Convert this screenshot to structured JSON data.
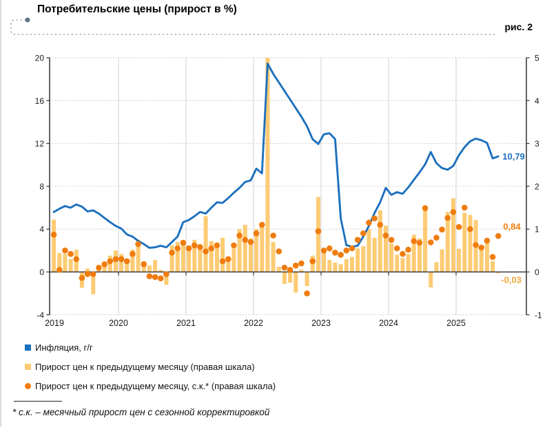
{
  "header": {
    "title": "Потребительские цены (прирост в %)",
    "figure_label": "рис. 2"
  },
  "footnote": {
    "text": "* с.к. – месячный прирост цен с сезонной корректировкой"
  },
  "colors": {
    "line_blue": "#1C70BE",
    "bar_amber": "#FCCB74",
    "dot_orange": "#F07C0D",
    "bar_label": "#F0A73E",
    "axis": "#3A3A3A",
    "grid_solid": "#D8D8D8",
    "grid_dotted": "#C0C0C0",
    "tick_text": "#1A1A1A",
    "decoration": "#9FAFBF",
    "decoration_dot": "#5D7385"
  },
  "chart_data": {
    "type": "combo",
    "frequency": "monthly",
    "start_month": "2019-01",
    "end_month": "2025-08",
    "x_years": [
      "2019",
      "2020",
      "2021",
      "2022",
      "2023",
      "2024",
      "2025"
    ],
    "left_axis": {
      "ticks": [
        20,
        16,
        12,
        8,
        4,
        0,
        -4
      ],
      "range": [
        -4,
        20
      ]
    },
    "right_axis": {
      "ticks": [
        5,
        4,
        3,
        2,
        1,
        0,
        -1
      ],
      "range": [
        -1,
        5
      ]
    },
    "grid": {
      "horizontal": "dotted",
      "vertical": "solid-yearly"
    },
    "legend_position": "bottom-left",
    "series": [
      {
        "name": "inflation-yoy",
        "label": "Инфляция, г/г",
        "type": "line",
        "axis": "left",
        "color": "#1C70BE",
        "end_label": "10,79",
        "values": [
          5.6,
          5.9,
          6.15,
          6.0,
          6.3,
          6.1,
          5.65,
          5.75,
          5.45,
          5.05,
          4.65,
          4.3,
          4.05,
          3.5,
          3.3,
          2.9,
          2.6,
          2.25,
          2.3,
          2.45,
          2.3,
          2.8,
          3.3,
          4.65,
          4.85,
          5.2,
          5.6,
          5.45,
          6.0,
          6.5,
          6.45,
          6.9,
          7.4,
          7.85,
          8.4,
          8.55,
          9.65,
          9.2,
          19.45,
          18.5,
          17.7,
          16.9,
          16.1,
          15.3,
          14.5,
          13.6,
          12.4,
          11.95,
          12.85,
          12.95,
          12.4,
          5.0,
          2.5,
          2.35,
          2.45,
          3.3,
          4.3,
          5.5,
          6.5,
          7.85,
          7.2,
          7.45,
          7.3,
          7.9,
          8.6,
          9.3,
          10.05,
          11.2,
          10.15,
          9.7,
          9.55,
          9.9,
          10.9,
          11.65,
          12.2,
          12.45,
          12.3,
          12.05,
          10.6,
          10.79
        ]
      },
      {
        "name": "mom-price-growth",
        "label": "Прирост цен к предыдущему месяцу (правая шкала)",
        "type": "bar",
        "axis": "right",
        "color": "#FCCB74",
        "end_label": "-0,03",
        "note": "March 2022 bar clipped at axis max 5",
        "values": [
          1.22,
          0.44,
          0.42,
          0.3,
          0.52,
          -0.37,
          0.08,
          -0.52,
          0.05,
          0.22,
          0.38,
          0.5,
          0.42,
          0.3,
          0.52,
          0.75,
          0.25,
          0.15,
          0.28,
          0.05,
          -0.3,
          0.62,
          0.7,
          0.75,
          0.62,
          0.75,
          0.65,
          1.3,
          0.72,
          0.68,
          0.8,
          0.32,
          0.55,
          1.0,
          1.1,
          0.78,
          1.0,
          1.15,
          5.0,
          0.7,
          0.12,
          -0.28,
          -0.25,
          -0.48,
          0.05,
          -0.33,
          0.38,
          1.75,
          0.45,
          0.28,
          0.22,
          0.18,
          0.3,
          0.35,
          0.55,
          0.6,
          1.0,
          0.8,
          1.44,
          1.08,
          0.67,
          0.4,
          0.32,
          0.42,
          0.87,
          0.78,
          1.52,
          -0.36,
          0.23,
          0.53,
          1.4,
          1.72,
          0.54,
          1.38,
          1.33,
          1.21,
          0.52,
          0.73,
          0.25,
          -0.03
        ]
      },
      {
        "name": "mom-price-growth-sa",
        "label": "Прирост цен к предыдущему месяцу, с.к.* (правая шкала)",
        "type": "point",
        "axis": "right",
        "color": "#F07C0D",
        "end_label": "0,84",
        "values": [
          0.87,
          0.05,
          0.5,
          0.42,
          0.3,
          -0.14,
          -0.05,
          -0.05,
          0.1,
          0.18,
          0.25,
          0.3,
          0.3,
          0.25,
          0.42,
          0.65,
          0.18,
          -0.1,
          -0.12,
          -0.15,
          -0.05,
          0.45,
          0.55,
          0.68,
          0.55,
          0.62,
          0.58,
          0.48,
          0.55,
          0.62,
          0.25,
          0.3,
          0.62,
          0.85,
          0.75,
          0.7,
          0.9,
          1.1,
          null,
          0.85,
          0.48,
          0.1,
          0.05,
          0.15,
          0.2,
          -0.5,
          0.25,
          0.95,
          0.5,
          0.55,
          0.45,
          0.4,
          0.5,
          0.55,
          0.75,
          0.9,
          1.15,
          1.25,
          1.1,
          0.85,
          0.75,
          0.55,
          0.42,
          0.52,
          0.72,
          0.68,
          1.49,
          0.69,
          0.8,
          0.99,
          1.26,
          1.4,
          1.05,
          1.5,
          1.0,
          0.63,
          0.57,
          0.73,
          0.35,
          0.84
        ]
      }
    ]
  }
}
